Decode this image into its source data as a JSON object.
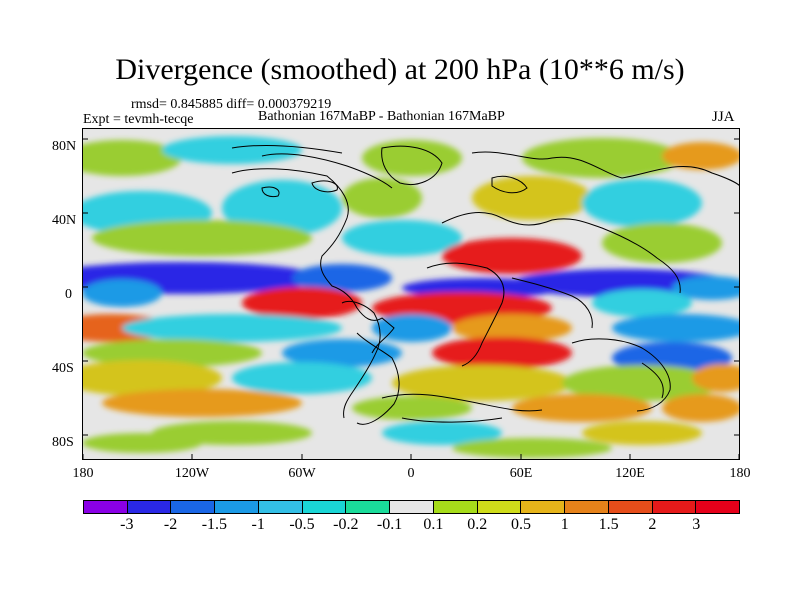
{
  "title": "Divergence (smoothed) at 200 hPa (10**6 m/s)",
  "stats": "rmsd= 0.845885 diff= 0.000379219",
  "expt": "Expt = tevmh-tecqe",
  "experiment_name": "Bathonian 167MaBP - Bathonian 167MaBP",
  "season": "JJA",
  "lat_labels": [
    "80N",
    "40N",
    "0",
    "40S",
    "80S"
  ],
  "lon_labels": [
    "180",
    "120W",
    "60W",
    "0",
    "60E",
    "120E",
    "180"
  ],
  "colorbar": {
    "labels": [
      "-3",
      "-2",
      "-1.5",
      "-1",
      "-0.5",
      "-0.2",
      "-0.1",
      "0.1",
      "0.2",
      "0.5",
      "1",
      "1.5",
      "2",
      "3"
    ],
    "colors": [
      "#8a00e6",
      "#2a28e6",
      "#1a66e6",
      "#1b9ae6",
      "#33bfe6",
      "#1ad6d6",
      "#1adc9a",
      "#e6e6e6",
      "#a6dc1a",
      "#cfdc1a",
      "#e6b41a",
      "#e6821a",
      "#e64d1a",
      "#e61a1a",
      "#e6001a"
    ]
  },
  "field_colors": {
    "neutral": "#e6e6e6",
    "cyan": "#33cfe0",
    "lightblue": "#1b9ae6",
    "blue": "#1a66e6",
    "darkblue": "#2a28e6",
    "green": "#9acd32",
    "yellow": "#d4c41a",
    "orange": "#e69a1a",
    "darkorange": "#e6641a",
    "red": "#e61a1a"
  }
}
